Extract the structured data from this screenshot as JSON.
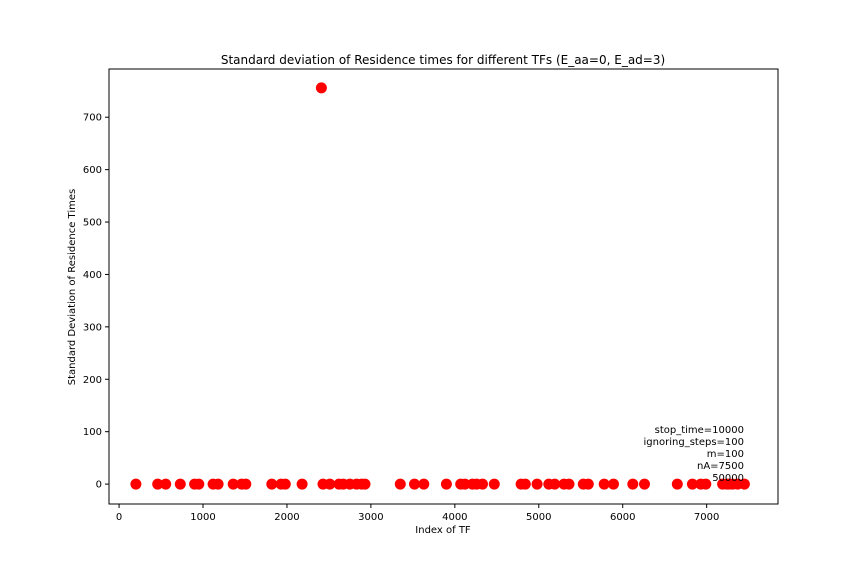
{
  "chart_data": {
    "type": "scatter",
    "title": "Standard deviation of Residence times for different TFs (E_aa=0, E_ad=3)",
    "xlabel": "Index of TF",
    "ylabel": "Standard Deviation of Residence Times",
    "xlim": [
      -120,
      7850
    ],
    "ylim": [
      -38,
      792
    ],
    "xticks": [
      0,
      1000,
      2000,
      3000,
      4000,
      5000,
      6000,
      7000
    ],
    "yticks": [
      0,
      100,
      200,
      300,
      400,
      500,
      600,
      700
    ],
    "grid": false,
    "color": "#ff0000",
    "series": [
      {
        "x": [
          200,
          2410,
          460,
          555,
          730,
          900,
          950,
          1120,
          1180,
          1360,
          1460,
          1510,
          1820,
          1930,
          1980,
          2180,
          2430,
          2510,
          2620,
          2670,
          2750,
          2830,
          2890,
          2930,
          3350,
          3520,
          3630,
          3900,
          4070,
          4120,
          4210,
          4260,
          4330,
          4470,
          4790,
          4840,
          4980,
          5120,
          5190,
          5300,
          5360,
          5530,
          5590,
          5780,
          5890,
          6120,
          6260,
          6650,
          6830,
          6930,
          6990,
          7190,
          7240,
          7270,
          7310,
          7370,
          7450
        ],
        "y": [
          0,
          756,
          0,
          0,
          0,
          0,
          0,
          0,
          0,
          0,
          0,
          0,
          0,
          0,
          0,
          0,
          0,
          0,
          0,
          0,
          0,
          0,
          0,
          0,
          0,
          0,
          0,
          0,
          0,
          0,
          0,
          0,
          0,
          0,
          0,
          0,
          0,
          0,
          0,
          0,
          0,
          0,
          0,
          0,
          0,
          0,
          0,
          0,
          0,
          0,
          0,
          0,
          0,
          0,
          0,
          0,
          0
        ]
      }
    ],
    "annotations": [
      "stop_time=10000",
      "ignoring_steps=100",
      "m=100",
      "nA=7500",
      "50000"
    ]
  }
}
